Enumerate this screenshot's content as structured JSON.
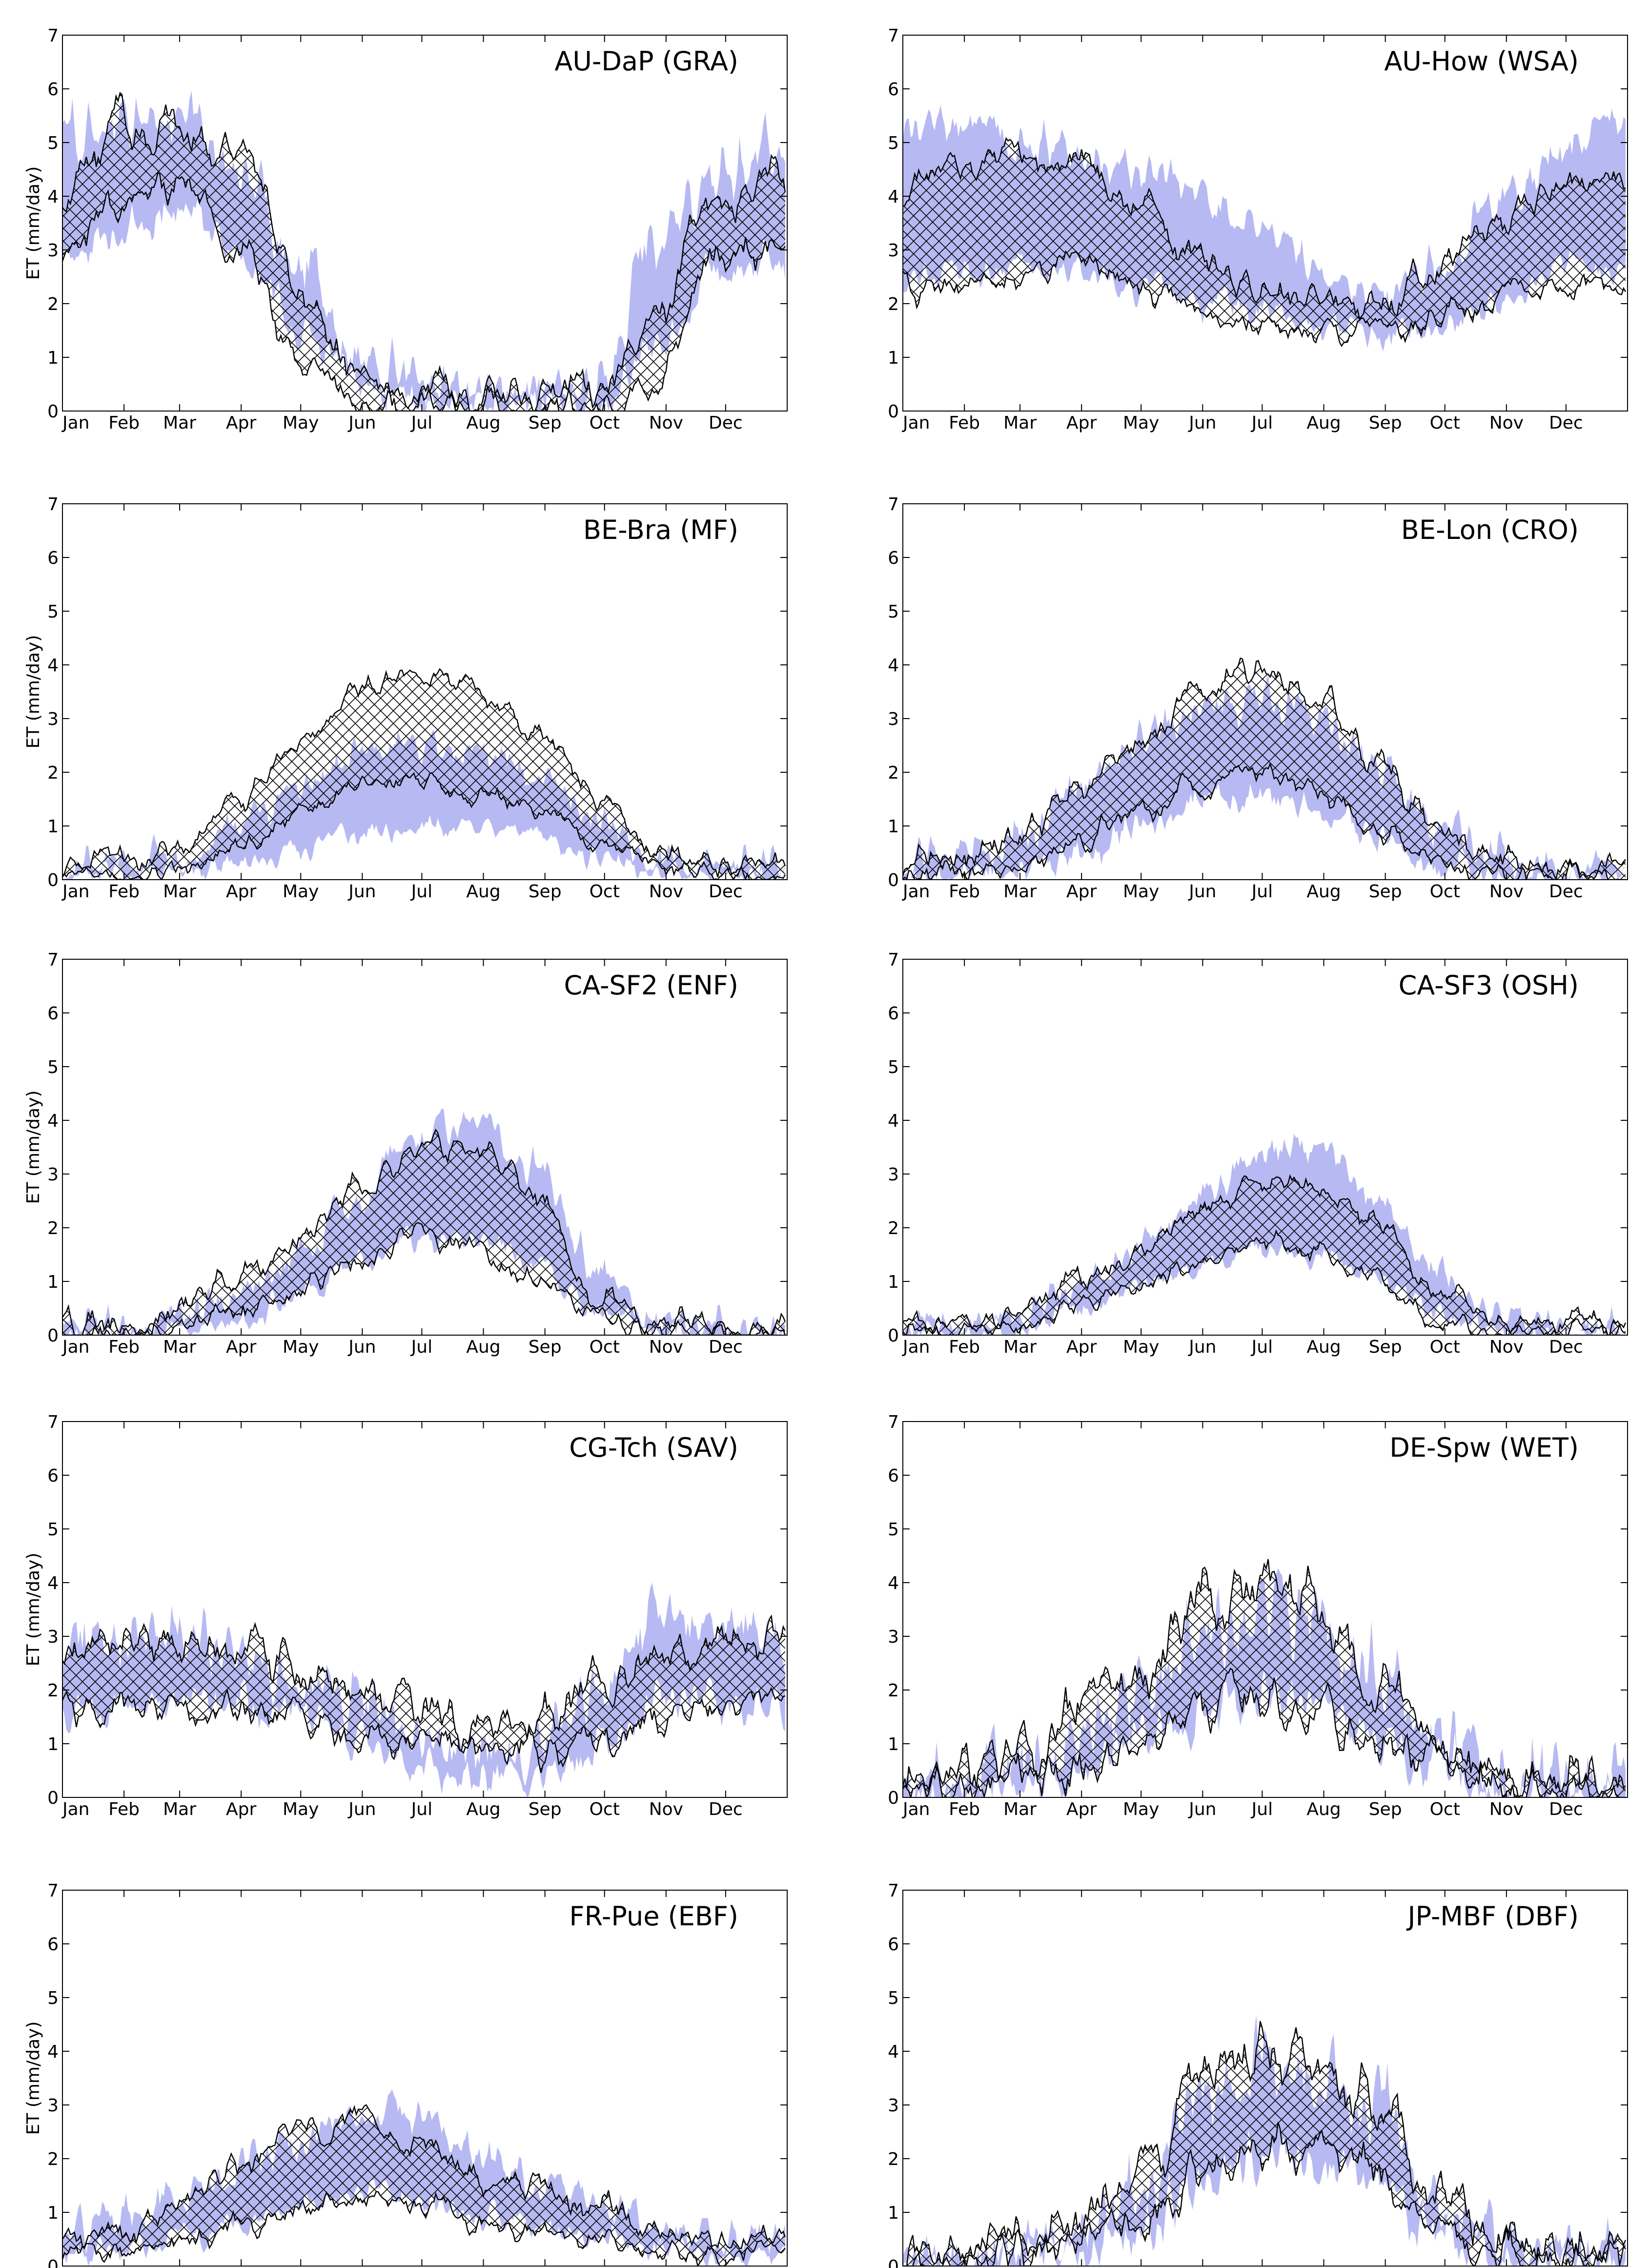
{
  "chart_data": {
    "type": "area",
    "description_free": true,
    "months": [
      "Jan",
      "Feb",
      "Mar",
      "Apr",
      "May",
      "Jun",
      "Jul",
      "Aug",
      "Sep",
      "Oct",
      "Nov",
      "Dec"
    ],
    "ylabel": "ET (mm/day)",
    "ylim": [
      0,
      7
    ],
    "yticks": [
      "0",
      "1",
      "2",
      "3",
      "4",
      "5",
      "6",
      "7"
    ],
    "colors": {
      "model_band": "#b7b9f2",
      "obs_band_hatch": "#000000",
      "line": "#000000"
    },
    "panels": [
      {
        "title": "AU-DaP (GRA)",
        "show_ylabel": true,
        "knots_doy": [
          0,
          30,
          60,
          90,
          120,
          150,
          180,
          210,
          240,
          270,
          300,
          330,
          365
        ],
        "model_low": [
          2.8,
          3.3,
          3.8,
          3.0,
          1.6,
          0.5,
          0.2,
          0.2,
          0.2,
          0.2,
          1.2,
          2.6,
          2.8
        ],
        "model_high": [
          5.0,
          5.3,
          5.5,
          4.6,
          2.6,
          1.0,
          0.5,
          0.4,
          0.4,
          0.6,
          3.3,
          4.4,
          5.2
        ],
        "obs_low": [
          3.0,
          3.8,
          4.2,
          3.0,
          1.0,
          0.2,
          0.1,
          0.1,
          0.1,
          0.1,
          0.5,
          3.0,
          3.0
        ],
        "obs_high": [
          4.4,
          5.4,
          5.3,
          4.8,
          2.2,
          0.8,
          0.3,
          0.3,
          0.3,
          0.3,
          1.8,
          4.0,
          4.4
        ],
        "noise": 0.55
      },
      {
        "title": "AU-How (WSA)",
        "show_ylabel": false,
        "knots_doy": [
          0,
          30,
          60,
          90,
          120,
          150,
          180,
          210,
          240,
          270,
          300,
          330,
          365
        ],
        "model_low": [
          2.5,
          2.6,
          2.7,
          2.6,
          2.3,
          2.0,
          1.9,
          1.6,
          1.4,
          1.6,
          2.0,
          2.7,
          2.6
        ],
        "model_high": [
          5.4,
          5.3,
          5.0,
          4.8,
          4.5,
          4.1,
          3.4,
          2.7,
          2.2,
          2.7,
          3.9,
          4.8,
          5.3
        ],
        "obs_low": [
          2.2,
          2.3,
          2.5,
          2.8,
          2.4,
          1.8,
          1.6,
          1.5,
          1.5,
          1.7,
          2.1,
          2.4,
          2.2
        ],
        "obs_high": [
          4.2,
          4.6,
          4.8,
          4.6,
          3.8,
          2.8,
          2.2,
          2.0,
          1.9,
          2.6,
          3.5,
          4.2,
          4.3
        ],
        "noise": 0.4
      },
      {
        "title": "BE-Bra (MF)",
        "show_ylabel": true,
        "knots_doy": [
          0,
          30,
          60,
          90,
          120,
          150,
          180,
          210,
          240,
          270,
          300,
          330,
          365
        ],
        "model_low": [
          0.1,
          0.1,
          0.15,
          0.3,
          0.6,
          0.9,
          1.0,
          1.0,
          0.8,
          0.4,
          0.15,
          0.1,
          0.1
        ],
        "model_high": [
          0.25,
          0.3,
          0.5,
          1.0,
          1.7,
          2.4,
          2.6,
          2.4,
          2.0,
          1.1,
          0.4,
          0.25,
          0.25
        ],
        "obs_low": [
          0.1,
          0.15,
          0.25,
          0.6,
          1.2,
          1.7,
          1.8,
          1.6,
          1.3,
          0.7,
          0.25,
          0.1,
          0.1
        ],
        "obs_high": [
          0.3,
          0.35,
          0.6,
          1.4,
          2.6,
          3.6,
          3.7,
          3.5,
          2.7,
          1.4,
          0.5,
          0.3,
          0.3
        ],
        "noise": 0.3
      },
      {
        "title": "BE-Lon (CRO)",
        "show_ylabel": false,
        "knots_doy": [
          0,
          30,
          60,
          90,
          120,
          150,
          180,
          210,
          240,
          270,
          300,
          330,
          365
        ],
        "model_low": [
          0.05,
          0.1,
          0.2,
          0.5,
          1.0,
          1.5,
          1.6,
          1.3,
          0.8,
          0.3,
          0.1,
          0.05,
          0.05
        ],
        "model_high": [
          0.3,
          0.4,
          0.9,
          1.7,
          2.6,
          3.2,
          3.4,
          3.0,
          2.1,
          1.0,
          0.4,
          0.2,
          0.3
        ],
        "obs_low": [
          0.1,
          0.1,
          0.25,
          0.7,
          1.2,
          1.8,
          2.0,
          1.6,
          1.0,
          0.4,
          0.15,
          0.1,
          0.1
        ],
        "obs_high": [
          0.35,
          0.4,
          0.8,
          1.6,
          2.5,
          3.5,
          4.0,
          3.4,
          2.2,
          1.1,
          0.45,
          0.3,
          0.35
        ],
        "noise": 0.4
      },
      {
        "title": "CA-SF2 (ENF)",
        "show_ylabel": true,
        "knots_doy": [
          0,
          30,
          60,
          90,
          120,
          150,
          180,
          210,
          240,
          270,
          300,
          330,
          365
        ],
        "model_low": [
          0.02,
          0.02,
          0.1,
          0.3,
          0.7,
          1.4,
          1.8,
          1.8,
          1.3,
          0.4,
          0.05,
          0.02,
          0.02
        ],
        "model_high": [
          0.1,
          0.1,
          0.3,
          0.8,
          1.5,
          2.7,
          3.8,
          4.0,
          3.0,
          1.2,
          0.2,
          0.1,
          0.1
        ],
        "obs_low": [
          0.05,
          0.05,
          0.15,
          0.5,
          0.9,
          1.4,
          1.9,
          1.6,
          1.0,
          0.3,
          0.05,
          0.05,
          0.05
        ],
        "obs_high": [
          0.15,
          0.2,
          0.4,
          1.1,
          1.8,
          2.8,
          3.6,
          3.4,
          2.5,
          0.8,
          0.2,
          0.15,
          0.15
        ],
        "noise": 0.35
      },
      {
        "title": "CA-SF3 (OSH)",
        "show_ylabel": false,
        "knots_doy": [
          0,
          30,
          60,
          90,
          120,
          150,
          180,
          210,
          240,
          270,
          300,
          330,
          365
        ],
        "model_low": [
          0.02,
          0.02,
          0.1,
          0.5,
          0.9,
          1.3,
          1.6,
          1.5,
          1.0,
          0.4,
          0.05,
          0.02,
          0.02
        ],
        "model_high": [
          0.15,
          0.15,
          0.3,
          0.9,
          1.6,
          2.6,
          3.4,
          3.5,
          2.6,
          1.2,
          0.3,
          0.15,
          0.15
        ],
        "obs_low": [
          0.05,
          0.05,
          0.2,
          0.6,
          1.0,
          1.3,
          1.7,
          1.5,
          1.0,
          0.3,
          0.05,
          0.05,
          0.05
        ],
        "obs_high": [
          0.2,
          0.2,
          0.4,
          1.0,
          1.5,
          2.4,
          3.0,
          2.8,
          2.0,
          0.8,
          0.2,
          0.2,
          0.2
        ],
        "noise": 0.3
      },
      {
        "title": "CG-Tch (SAV)",
        "show_ylabel": true,
        "knots_doy": [
          0,
          30,
          60,
          90,
          120,
          150,
          180,
          210,
          240,
          270,
          300,
          330,
          365
        ],
        "model_low": [
          1.6,
          1.7,
          1.8,
          1.8,
          1.6,
          1.1,
          0.6,
          0.4,
          0.4,
          1.0,
          1.8,
          1.8,
          1.6
        ],
        "model_high": [
          2.8,
          3.0,
          3.0,
          2.7,
          2.3,
          1.6,
          1.1,
          0.9,
          0.9,
          2.0,
          3.4,
          3.2,
          2.8
        ],
        "obs_low": [
          1.6,
          1.8,
          1.8,
          1.6,
          1.4,
          1.1,
          0.9,
          0.9,
          0.9,
          1.2,
          1.5,
          1.7,
          1.6
        ],
        "obs_high": [
          2.7,
          3.1,
          3.0,
          2.8,
          2.4,
          1.8,
          1.5,
          1.4,
          1.5,
          2.0,
          2.6,
          2.8,
          2.7
        ],
        "noise": 0.55
      },
      {
        "title": "DE-Spw (WET)",
        "show_ylabel": false,
        "knots_doy": [
          0,
          30,
          60,
          90,
          120,
          150,
          180,
          210,
          240,
          270,
          300,
          330,
          365
        ],
        "model_low": [
          0.05,
          0.05,
          0.2,
          0.5,
          1.0,
          1.6,
          2.0,
          1.8,
          1.2,
          0.6,
          0.1,
          0.05,
          0.05
        ],
        "model_high": [
          0.2,
          0.3,
          0.6,
          1.2,
          2.0,
          3.0,
          3.6,
          3.4,
          2.4,
          1.1,
          0.3,
          0.2,
          0.2
        ],
        "obs_low": [
          0.1,
          0.1,
          0.3,
          0.6,
          1.0,
          1.6,
          1.8,
          1.7,
          1.2,
          0.6,
          0.15,
          0.1,
          0.1
        ],
        "obs_high": [
          0.3,
          0.35,
          0.7,
          1.3,
          2.3,
          3.8,
          4.0,
          3.6,
          2.3,
          1.0,
          0.35,
          0.3,
          0.3
        ],
        "noise": 0.75
      },
      {
        "title": "FR-Pue (EBF)",
        "show_ylabel": true,
        "knots_doy": [
          0,
          30,
          60,
          90,
          120,
          150,
          180,
          210,
          240,
          270,
          300,
          330,
          365
        ],
        "model_low": [
          0.2,
          0.3,
          0.5,
          0.8,
          1.1,
          1.4,
          1.3,
          1.0,
          0.8,
          0.5,
          0.3,
          0.2,
          0.2
        ],
        "model_high": [
          0.7,
          0.9,
          1.3,
          1.9,
          2.4,
          2.8,
          2.8,
          2.1,
          1.6,
          1.1,
          0.7,
          0.5,
          0.7
        ],
        "obs_low": [
          0.2,
          0.3,
          0.5,
          0.8,
          1.0,
          1.3,
          1.1,
          0.8,
          0.6,
          0.4,
          0.3,
          0.2,
          0.2
        ],
        "obs_high": [
          0.5,
          0.7,
          1.2,
          1.9,
          2.5,
          2.8,
          2.2,
          1.6,
          1.5,
          1.1,
          0.6,
          0.4,
          0.5
        ],
        "noise": 0.35
      },
      {
        "title": "JP-MBF (DBF)",
        "show_ylabel": false,
        "knots_doy": [
          0,
          30,
          60,
          90,
          120,
          150,
          180,
          210,
          240,
          270,
          300,
          330,
          365
        ],
        "model_low": [
          0.02,
          0.05,
          0.1,
          0.3,
          0.6,
          1.6,
          2.0,
          2.0,
          1.5,
          0.6,
          0.1,
          0.05,
          0.02
        ],
        "model_high": [
          0.15,
          0.2,
          0.3,
          0.6,
          1.3,
          3.2,
          3.8,
          3.6,
          3.0,
          1.2,
          0.3,
          0.15,
          0.15
        ],
        "obs_low": [
          0.1,
          0.1,
          0.2,
          0.4,
          0.8,
          1.8,
          2.2,
          2.0,
          1.6,
          0.7,
          0.2,
          0.1,
          0.1
        ],
        "obs_high": [
          0.25,
          0.3,
          0.5,
          0.9,
          1.8,
          3.6,
          3.9,
          3.7,
          3.0,
          1.2,
          0.4,
          0.25,
          0.25
        ],
        "noise": 0.7
      }
    ]
  }
}
